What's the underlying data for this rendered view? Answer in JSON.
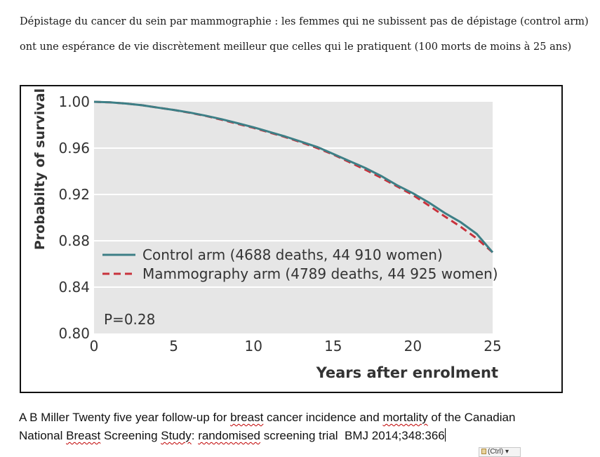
{
  "intro": {
    "line1": "Dépistage du cancer du sein par mammographie : les femmes qui ne subissent pas de dépistage (control arm)",
    "line2": "ont une espérance de vie discrètement meilleur que celles qui le pratiquent (100 morts de moins à 25 ans)"
  },
  "chart_data": {
    "type": "line",
    "ylabel": "Probabilty of survival",
    "xlabel": "Years after enrolment",
    "xlim": [
      0,
      25
    ],
    "ylim": [
      0.8,
      1.0
    ],
    "xticks": [
      "0",
      "5",
      "10",
      "15",
      "20",
      "25"
    ],
    "yticks": [
      "0.80",
      "0.84",
      "0.88",
      "0.92",
      "0.96",
      "1.00"
    ],
    "grid": "horizontal",
    "legend_position": "lower-middle",
    "annotation": "P=0.28",
    "x": [
      0,
      1,
      2,
      3,
      4,
      5,
      6,
      7,
      8,
      9,
      10,
      11,
      12,
      13,
      14,
      15,
      16,
      17,
      18,
      19,
      20,
      21,
      22,
      23,
      24,
      25
    ],
    "series": [
      {
        "name": "Control arm (4688 deaths, 44 910 women)",
        "color": "#3d7f86",
        "style": "solid",
        "values": [
          1.0,
          0.9995,
          0.9985,
          0.997,
          0.995,
          0.993,
          0.9907,
          0.988,
          0.985,
          0.9815,
          0.978,
          0.974,
          0.97,
          0.9655,
          0.961,
          0.955,
          0.949,
          0.943,
          0.936,
          0.928,
          0.921,
          0.913,
          0.904,
          0.896,
          0.886,
          0.87
        ]
      },
      {
        "name": "Mammography arm (4789 deaths, 44 925 women)",
        "color": "#c8323c",
        "style": "dashed",
        "values": [
          1.0,
          0.9995,
          0.9985,
          0.997,
          0.995,
          0.993,
          0.9905,
          0.9878,
          0.9845,
          0.981,
          0.9775,
          0.9735,
          0.9695,
          0.965,
          0.96,
          0.9545,
          0.948,
          0.9415,
          0.9345,
          0.927,
          0.9195,
          0.9105,
          0.901,
          0.892,
          0.882,
          0.87
        ]
      }
    ]
  },
  "caption": {
    "line2_end": "BMJ 2014;348:366"
  },
  "paste_options": {
    "label": "(Ctrl)"
  }
}
